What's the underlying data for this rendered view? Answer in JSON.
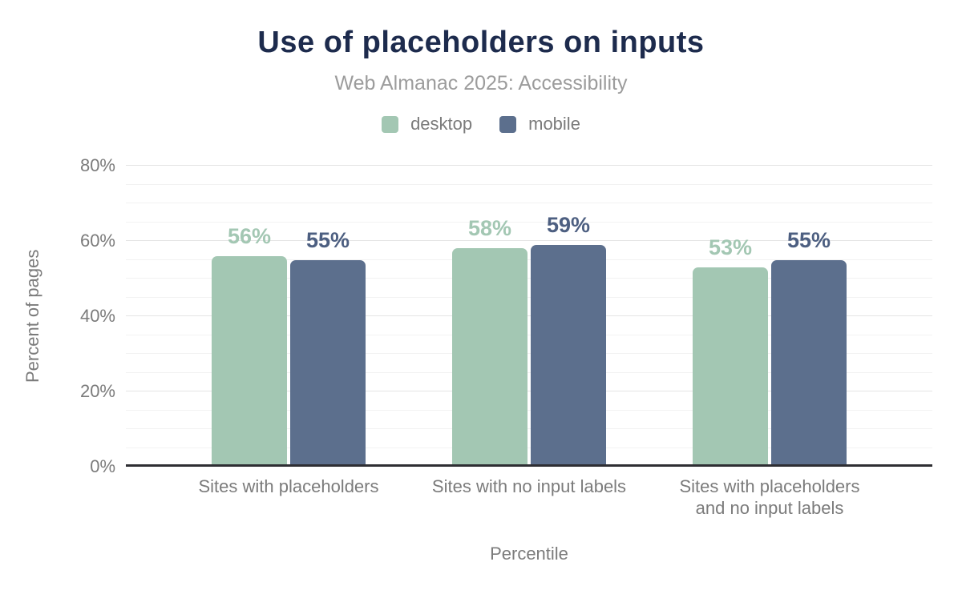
{
  "chart_data": {
    "type": "bar",
    "title": "Use of placeholders on inputs",
    "subtitle": "Web Almanac 2025: Accessibility",
    "xlabel": "Percentile",
    "ylabel": "Percent of pages",
    "ylim": [
      0,
      80
    ],
    "y_major_step": 20,
    "y_minor_step": 5,
    "tick_suffix": "%",
    "value_suffix": "%",
    "grid": true,
    "legend_position": "top",
    "categories": [
      "Sites with placeholders",
      "Sites with no input labels",
      "Sites with placeholders and no input labels"
    ],
    "category_lines": [
      [
        "Sites with placeholders"
      ],
      [
        "Sites with no input labels"
      ],
      [
        "Sites with placeholders",
        "and no input labels"
      ]
    ],
    "series": [
      {
        "name": "desktop",
        "color": "#a3c7b3",
        "label_color": "#a3c7b3",
        "values": [
          56,
          58,
          53
        ]
      },
      {
        "name": "mobile",
        "color": "#5c6f8d",
        "label_color": "#4d5f81",
        "values": [
          55,
          59,
          55
        ]
      }
    ]
  },
  "colors": {
    "title": "#1d2b4d",
    "subtitle": "#9c9c9c",
    "axis_text": "#7b7b7b",
    "grid_minor": "#f2f2f2",
    "grid_major": "#e4e4e4",
    "axis_line": "#2e2e33",
    "background": "#ffffff"
  }
}
